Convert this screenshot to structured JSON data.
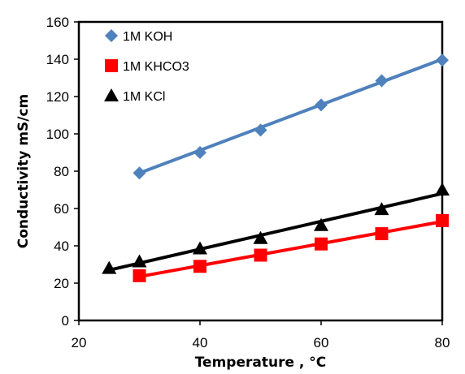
{
  "chart_data": {
    "type": "scatter",
    "title": "",
    "xlabel": "Temperature , °C",
    "ylabel": "Conductivity mS/cm",
    "xlim": [
      20,
      80
    ],
    "ylim": [
      0,
      160
    ],
    "xticks": [
      "20",
      "40",
      "60",
      "80"
    ],
    "yticks": [
      "0",
      "20",
      "40",
      "60",
      "80",
      "100",
      "120",
      "140",
      "160"
    ],
    "grid": false,
    "legend_position": "top-left",
    "series": [
      {
        "name": "1M KOH",
        "marker": "diamond",
        "color": "#4F81BD",
        "points": [
          [
            30,
            79
          ],
          [
            40,
            90
          ],
          [
            50,
            102
          ],
          [
            60,
            115.5
          ],
          [
            70,
            128.5
          ],
          [
            80,
            139.5
          ]
        ],
        "trendline": [
          [
            30,
            79
          ],
          [
            80,
            140
          ]
        ]
      },
      {
        "name": "1M KHCO3",
        "marker": "square",
        "color": "#FF0000",
        "points": [
          [
            30,
            24
          ],
          [
            40,
            29
          ],
          [
            50,
            35
          ],
          [
            60,
            41
          ],
          [
            70,
            46.5
          ],
          [
            80,
            53.5
          ]
        ],
        "trendline": [
          [
            30,
            23.5
          ],
          [
            80,
            53
          ]
        ]
      },
      {
        "name": "1M KCl",
        "marker": "triangle",
        "color": "#000000",
        "points": [
          [
            25,
            28
          ],
          [
            30,
            31.5
          ],
          [
            40,
            38.5
          ],
          [
            50,
            44
          ],
          [
            60,
            51
          ],
          [
            70,
            59.5
          ],
          [
            80,
            70
          ]
        ],
        "trendline": [
          [
            25,
            27
          ],
          [
            80,
            68
          ]
        ]
      }
    ]
  }
}
